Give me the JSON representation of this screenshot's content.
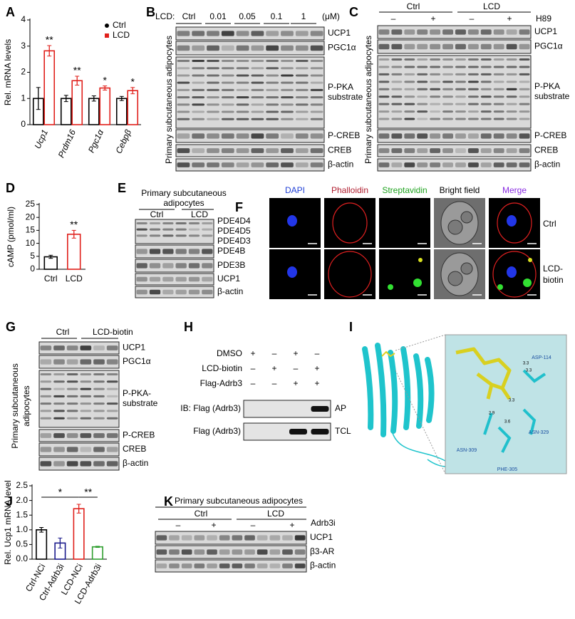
{
  "panels": {
    "letters": [
      "A",
      "B",
      "C",
      "D",
      "E",
      "F",
      "G",
      "H",
      "I",
      "J",
      "K"
    ],
    "B": {
      "treatment": "LCD:",
      "doses": [
        "Ctrl",
        "0.01",
        "0.05",
        "0.1",
        "1"
      ],
      "unit": "(μM)",
      "side_label": "Primary subcutaneous adipocytes",
      "rows": [
        [
          "UCP1"
        ],
        [
          "PGC1α"
        ],
        [
          "P-PKA",
          "substrate"
        ],
        [
          "P-CREB"
        ],
        [
          "CREB"
        ],
        [
          "β-actin"
        ]
      ]
    },
    "C": {
      "groups": [
        "Ctrl",
        "LCD"
      ],
      "treatment": "H89",
      "signs": [
        "–",
        "+",
        "–",
        "+"
      ],
      "side_label": "Primary subcutaneous adipocytes",
      "rows": [
        [
          "UCP1"
        ],
        [
          "PGC1α"
        ],
        [
          "P-PKA",
          "substrate"
        ],
        [
          "P-CREB"
        ],
        [
          "CREB"
        ],
        [
          "β-actin"
        ]
      ]
    },
    "E": {
      "title": [
        "Primary subcutaneous",
        "adipocytes"
      ],
      "groups": [
        "Ctrl",
        "LCD"
      ],
      "rows": [
        [
          "PDE4D4",
          "PDE4D5",
          "PDE4D3"
        ],
        [
          "PDE4B"
        ],
        [
          "PDE3B"
        ],
        [
          "UCP1"
        ],
        [
          "β-actin"
        ]
      ]
    },
    "F": {
      "columns": [
        "DAPI",
        "Phalloidin",
        "Streptavidin",
        "Bright field",
        "Merge"
      ],
      "rows": [
        [
          "Ctrl"
        ],
        [
          "LCD-",
          "biotin"
        ]
      ]
    },
    "G": {
      "groups": [
        "Ctrl",
        "LCD-biotin"
      ],
      "side_label": [
        "Primary subcutaneous",
        "adipocytes"
      ],
      "rows": [
        [
          "UCP1"
        ],
        [
          "PGC1α"
        ],
        [
          "P-PKA-",
          "substrate"
        ],
        [
          "P-CREB"
        ],
        [
          "CREB"
        ],
        [
          "β-actin"
        ]
      ]
    },
    "H": {
      "conditions": [
        {
          "label": "DMSO",
          "signs": [
            "+",
            "–",
            "+",
            "–"
          ]
        },
        {
          "label": "LCD-biotin",
          "signs": [
            "–",
            "+",
            "–",
            "+"
          ]
        },
        {
          "label": "Flag-Adrb3",
          "signs": [
            "–",
            "–",
            "+",
            "+"
          ]
        }
      ],
      "blots": [
        {
          "label": "IB: Flag (Adrb3)",
          "fraction": "AP"
        },
        {
          "label": "Flag (Adrb3)",
          "fraction": "TCL"
        }
      ]
    },
    "I": {
      "residues": [
        "ASP-114",
        "ASN-329",
        "ASN-309",
        "PHE-305"
      ],
      "distances": [
        "2.9",
        "3.3",
        "3.6",
        "3.3",
        "3.3"
      ]
    },
    "K": {
      "title": "Primary subcutaneous adipocytes",
      "groups": [
        "Ctrl",
        "LCD"
      ],
      "treatment": "Adrb3i",
      "signs": [
        "–",
        "+",
        "–",
        "+"
      ],
      "rows": [
        [
          "UCP1"
        ],
        [
          "β3-AR"
        ],
        [
          "β-actin"
        ]
      ]
    }
  },
  "chart_data": [
    {
      "type": "bar",
      "ylabel": "Rel. mRNA levels",
      "categories": [
        "Ucp1",
        "Prdm16",
        "Pgc1α",
        "Cebpβ"
      ],
      "series": [
        {
          "name": "Ctrl",
          "color": "#000000",
          "values": [
            1.0,
            1.0,
            1.0,
            1.0
          ],
          "errors": [
            0.42,
            0.12,
            0.1,
            0.08
          ]
        },
        {
          "name": "LCD",
          "color": "#e0201b",
          "values": [
            2.82,
            1.68,
            1.4,
            1.3
          ],
          "errors": [
            0.2,
            0.17,
            0.08,
            0.12
          ]
        }
      ],
      "ylim": [
        0,
        4
      ],
      "yticks": [
        0,
        1,
        2,
        3,
        4
      ],
      "legend": "upper right",
      "annotations": [
        {
          "text": "**",
          "x": "Ucp1"
        },
        {
          "text": "**",
          "x": "Prdm16"
        },
        {
          "text": "*",
          "x": "Pgc1α"
        },
        {
          "text": "*",
          "x": "Cebpβ"
        }
      ]
    },
    {
      "type": "bar",
      "ylabel": "cAMP (pmol/ml)",
      "categories": [
        "Ctrl",
        "LCD"
      ],
      "values": [
        4.8,
        13.5
      ],
      "errors": [
        0.6,
        1.5
      ],
      "colors": [
        "#000000",
        "#e0201b"
      ],
      "ylim": [
        0,
        25
      ],
      "yticks": [
        0,
        5,
        10,
        15,
        20,
        25
      ],
      "annotations": [
        {
          "text": "**",
          "x": "LCD"
        }
      ]
    },
    {
      "type": "bar",
      "ylabel": "Rel. Ucp1 mRNA level",
      "categories": [
        "Ctrl-NCi",
        "Ctrl-Adrb3i",
        "LCD-NCi",
        "LCD-Adrb3i"
      ],
      "values": [
        1.0,
        0.55,
        1.72,
        0.42
      ],
      "errors": [
        0.08,
        0.17,
        0.15,
        0.02
      ],
      "colors": [
        "#000000",
        "#1a1a8c",
        "#e0201b",
        "#2e9e2e"
      ],
      "ylim": [
        0,
        2.5
      ],
      "yticks": [
        {
          "value": 0,
          "label": "0.0"
        },
        {
          "value": 0.5,
          "label": "0.5"
        },
        {
          "value": 1,
          "label": "1.0"
        },
        {
          "value": 1.5,
          "label": "1.5"
        },
        {
          "value": 2,
          "label": "2.0"
        },
        {
          "value": 2.5,
          "label": "2.5"
        }
      ],
      "annotations": [
        {
          "text": "*",
          "from": "Ctrl-NCi",
          "to": "LCD-NCi"
        },
        {
          "text": "**",
          "from": "LCD-NCi",
          "to": "LCD-Adrb3i"
        }
      ]
    }
  ]
}
